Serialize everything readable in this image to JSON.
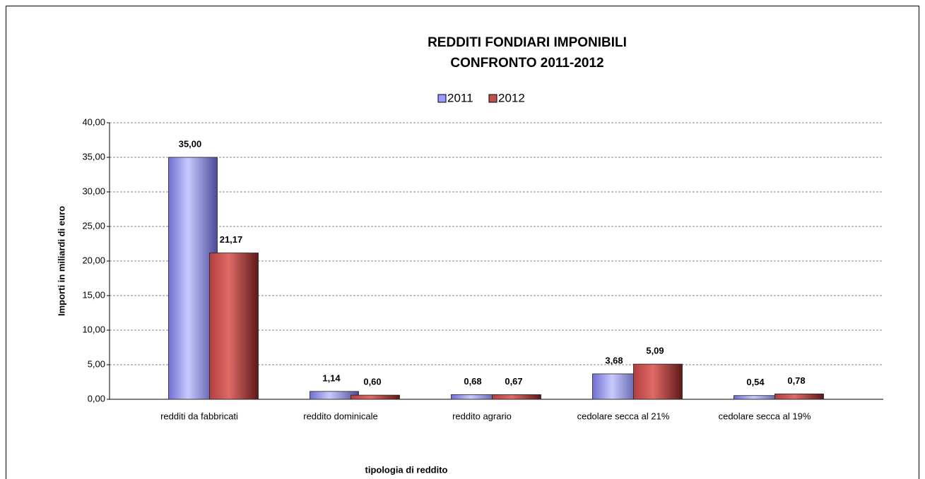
{
  "chart_data": {
    "type": "bar",
    "title_lines": [
      "REDDITI FONDIARI IMPONIBILI",
      "CONFRONTO 2011-2012"
    ],
    "ylabel": "Importi in miliardi di euro",
    "xlabel": "tipologia di reddito",
    "categories": [
      "redditi da fabbricati",
      "reddito dominicale",
      "reddito agrario",
      "cedolare secca al 21%",
      "cedolare secca al 19%"
    ],
    "series": [
      {
        "name": "2011",
        "color": "#9999ff",
        "values": [
          35.0,
          1.14,
          0.68,
          3.68,
          0.54
        ],
        "value_labels": [
          "35,00",
          "1,14",
          "0,68",
          "3,68",
          "0,54"
        ]
      },
      {
        "name": "2012",
        "color": "#c0504d",
        "values": [
          21.17,
          0.6,
          0.67,
          5.09,
          0.78
        ],
        "value_labels": [
          "21,17",
          "0,60",
          "0,67",
          "5,09",
          "0,78"
        ]
      }
    ],
    "ylim": [
      0,
      40
    ],
    "yticks": [
      {
        "value": 0,
        "label": "0,00"
      },
      {
        "value": 5,
        "label": "5,00"
      },
      {
        "value": 10,
        "label": "10,00"
      },
      {
        "value": 15,
        "label": "15,00"
      },
      {
        "value": 20,
        "label": "20,00"
      },
      {
        "value": 25,
        "label": "25,00"
      },
      {
        "value": 30,
        "label": "30,00"
      },
      {
        "value": 35,
        "label": "35,00"
      },
      {
        "value": 40,
        "label": "40,00"
      }
    ],
    "grid": true,
    "legend": "top"
  }
}
